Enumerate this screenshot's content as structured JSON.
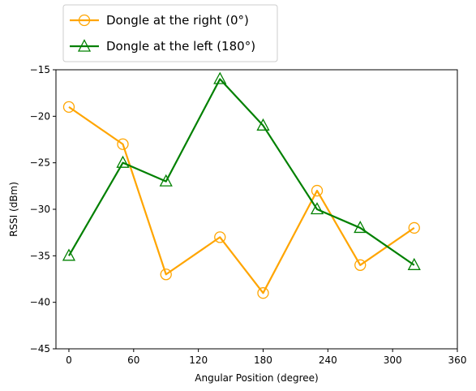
{
  "chart_data": {
    "type": "line",
    "title": "",
    "xlabel": "Angular Position (degree)",
    "ylabel": "RSSI (dBm)",
    "xlim": [
      -12,
      360
    ],
    "ylim": [
      -45,
      -15
    ],
    "xticks": [
      0,
      60,
      120,
      180,
      240,
      300,
      360
    ],
    "yticks": [
      -45,
      -40,
      -35,
      -30,
      -25,
      -20,
      -15
    ],
    "grid": false,
    "legend_position": "top-left-outside",
    "series": [
      {
        "name": "Dongle at the right (0°)",
        "color": "#ffa500",
        "marker": "circle",
        "x": [
          0,
          50,
          90,
          140,
          180,
          230,
          270,
          320
        ],
        "y": [
          -19,
          -23,
          -37,
          -33,
          -39,
          -28,
          -36,
          -32
        ]
      },
      {
        "name": "Dongle at the left (180°)",
        "color": "#008000",
        "marker": "triangle",
        "x": [
          0,
          50,
          90,
          140,
          180,
          230,
          270,
          320
        ],
        "y": [
          -35,
          -25,
          -27,
          -16,
          -21,
          -30,
          -32,
          -36
        ]
      }
    ]
  }
}
